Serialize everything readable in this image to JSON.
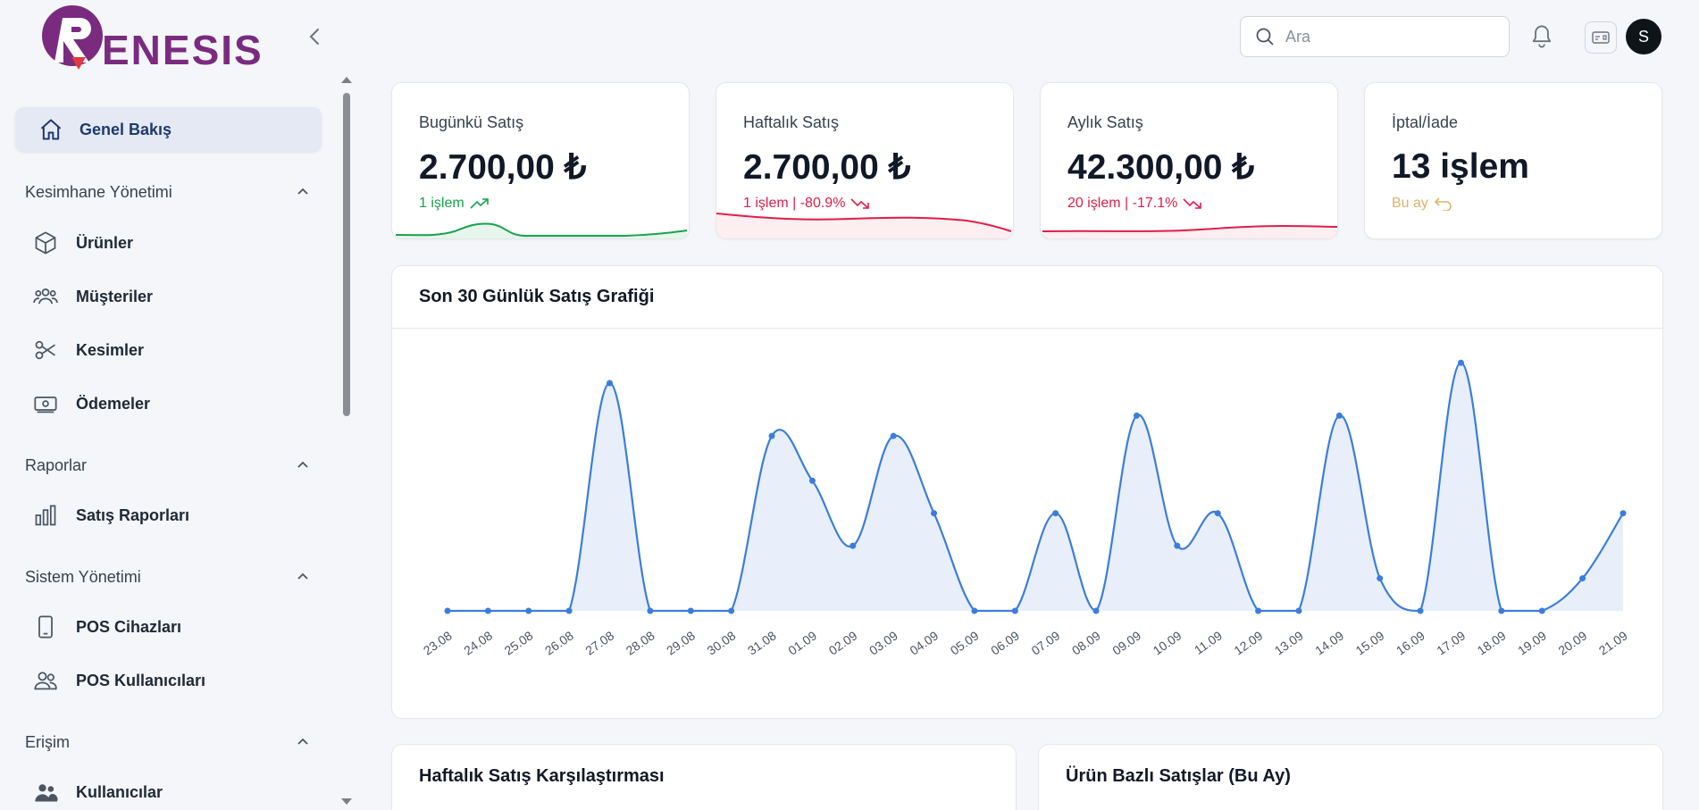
{
  "brand": {
    "logo_text": "RENESIS",
    "color_primary": "#7a2b7f",
    "color_accent": "#e13a40"
  },
  "header": {
    "search_placeholder": "Ara",
    "avatar_initial": "S"
  },
  "sidebar": {
    "active": {
      "label": "Genel Bakış",
      "icon": "home-icon"
    },
    "sections": [
      {
        "title": "Kesimhane Yönetimi",
        "items": [
          {
            "label": "Ürünler",
            "icon": "box-icon"
          },
          {
            "label": "Müşteriler",
            "icon": "users-icon"
          },
          {
            "label": "Kesimler",
            "icon": "scissors-icon"
          },
          {
            "label": "Ödemeler",
            "icon": "money-icon"
          }
        ]
      },
      {
        "title": "Raporlar",
        "items": [
          {
            "label": "Satış Raporları",
            "icon": "bar-chart-icon"
          }
        ]
      },
      {
        "title": "Sistem Yönetimi",
        "items": [
          {
            "label": "POS Cihazları",
            "icon": "device-icon"
          },
          {
            "label": "POS Kullanıcıları",
            "icon": "user-group-icon"
          }
        ]
      },
      {
        "title": "Erişim",
        "items": [
          {
            "label": "Kullanıcılar",
            "icon": "users-solid-icon"
          }
        ]
      }
    ]
  },
  "stats": [
    {
      "title": "Bugünkü Satış",
      "value": "2.700,00 ₺",
      "sub": "1 işlem",
      "trend": "up",
      "color": "#16a34a"
    },
    {
      "title": "Haftalık Satış",
      "value": "2.700,00 ₺",
      "sub": "1 işlem | -80.9%",
      "trend": "down",
      "color": "#e11d48"
    },
    {
      "title": "Aylık Satış",
      "value": "42.300,00 ₺",
      "sub": "20 işlem | -17.1%",
      "trend": "down",
      "color": "#e11d48"
    },
    {
      "title": "İptal/İade",
      "value": "13 işlem",
      "sub": "Bu ay",
      "trend": "return",
      "color": "#e0b36a"
    }
  ],
  "main_chart": {
    "title": "Son 30 Günlük Satış Grafiği",
    "line_color": "#3b7ddd",
    "fill_color": "#e8effa"
  },
  "chart_data": {
    "type": "area",
    "categories": [
      "23.08",
      "24.08",
      "25.08",
      "26.08",
      "27.08",
      "28.08",
      "29.08",
      "30.08",
      "31.08",
      "01.09",
      "02.09",
      "03.09",
      "04.09",
      "05.09",
      "06.09",
      "07.09",
      "08.09",
      "09.09",
      "10.09",
      "11.09",
      "12.09",
      "13.09",
      "14.09",
      "15.09",
      "16.09",
      "17.09",
      "18.09",
      "19.09",
      "20.09",
      "21.09"
    ],
    "values": [
      0,
      0,
      0,
      0,
      5600,
      0,
      0,
      0,
      4300,
      3200,
      1600,
      4300,
      2400,
      0,
      0,
      2400,
      0,
      4800,
      1600,
      2400,
      0,
      0,
      4800,
      800,
      0,
      6100,
      0,
      0,
      800,
      2400
    ],
    "ylim": [
      0,
      6500
    ],
    "grid": false
  },
  "bottom_panels": [
    {
      "title": "Haftalık Satış Karşılaştırması"
    },
    {
      "title": "Ürün Bazlı Satışlar (Bu Ay)"
    }
  ]
}
